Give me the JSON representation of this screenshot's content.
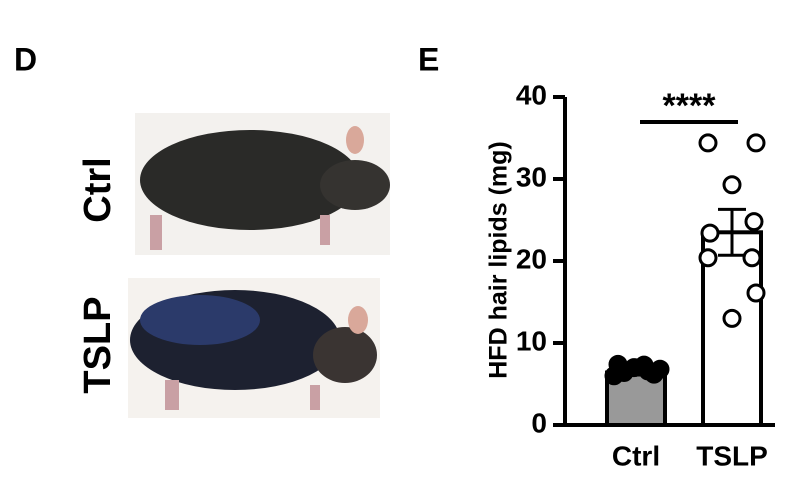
{
  "panel_d": {
    "label": "D",
    "image_labels": [
      "Ctrl",
      "TSLP"
    ]
  },
  "chart_data": {
    "type": "bar",
    "panel_label": "E",
    "y_label": "HFD hair lipids (mg)",
    "annotation": "****",
    "categories": [
      "Ctrl",
      "TSLP"
    ],
    "values": [
      6.4,
      23.5
    ],
    "errors": [
      0.3,
      2.8
    ],
    "points": [
      [
        6.0,
        6.4,
        7.0,
        7.3,
        6.2,
        6.8,
        7.4,
        6.6
      ],
      [
        34.4,
        34.4,
        29.3,
        24.8,
        23.4,
        20.4,
        20.4,
        16.1,
        13.0
      ]
    ],
    "bar_colors": [
      "#999999",
      "#ffffff"
    ],
    "point_fills": [
      "#000000",
      "#ffffff"
    ],
    "ylim": [
      0,
      40
    ],
    "yticks": [
      0,
      10,
      20,
      30,
      40
    ]
  }
}
